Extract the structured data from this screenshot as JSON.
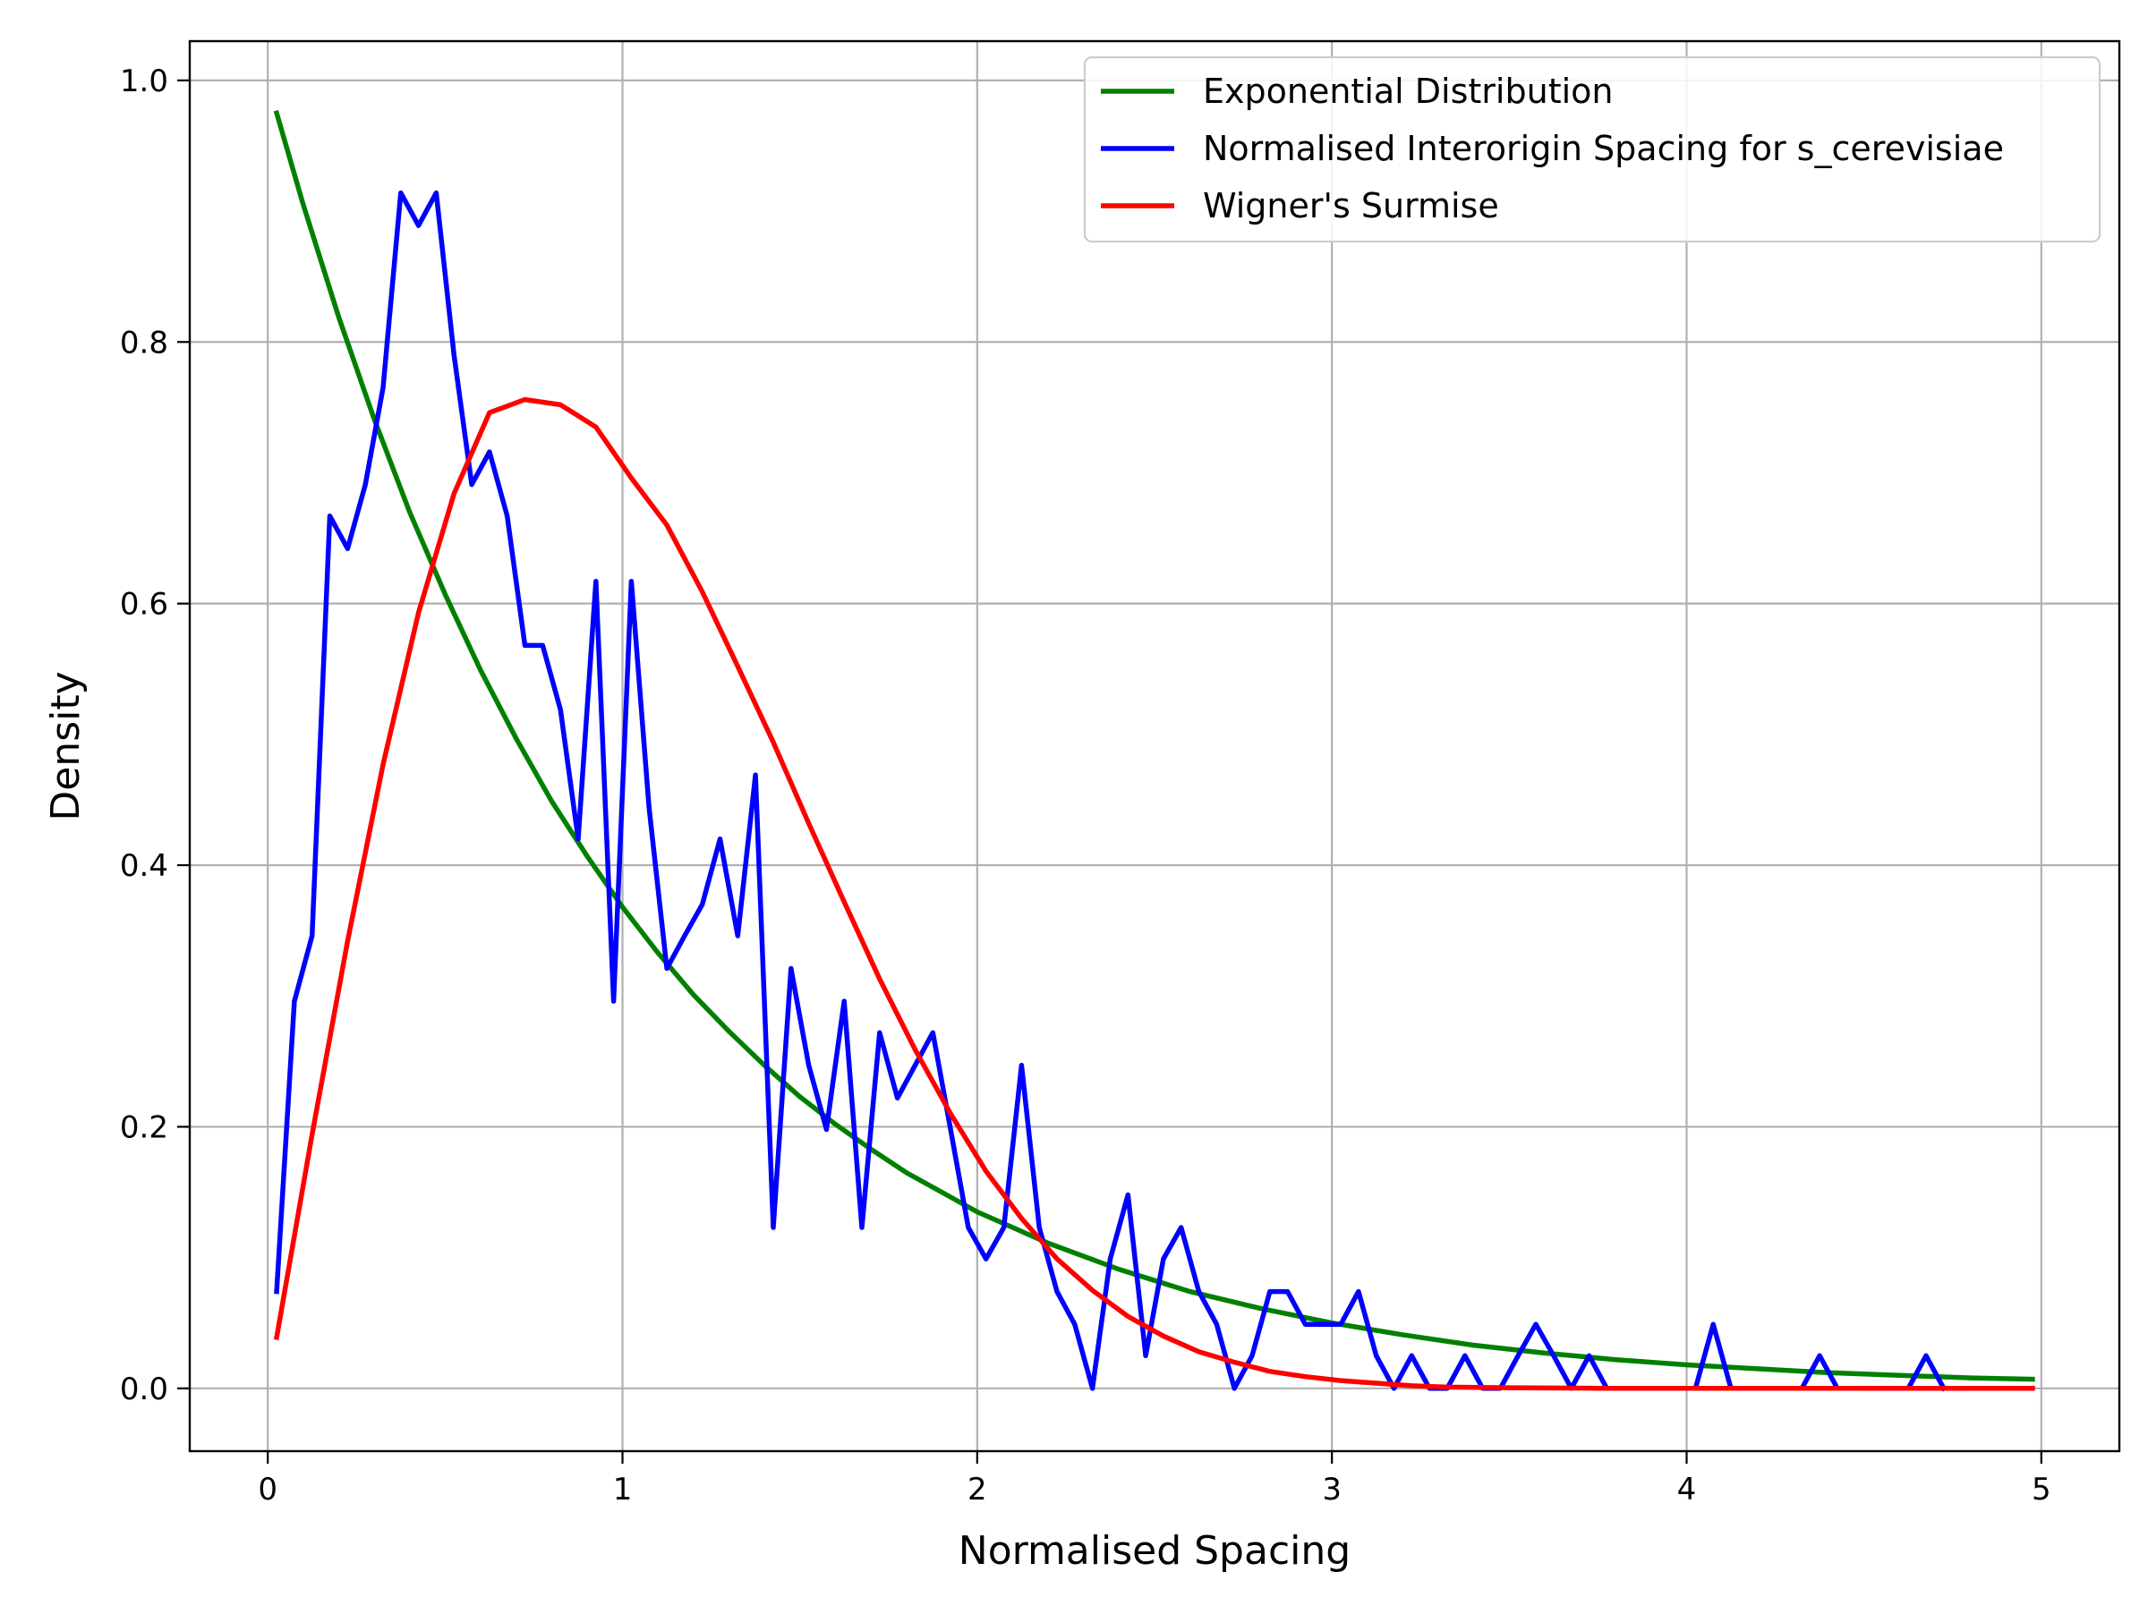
{
  "chart_data": {
    "type": "line",
    "title": "",
    "xlabel": "Normalised Spacing",
    "ylabel": "Density",
    "xlim": [
      -0.22,
      5.22
    ],
    "ylim": [
      -0.048,
      1.03
    ],
    "xticks": [
      0,
      1,
      2,
      3,
      4,
      5
    ],
    "xtick_labels": [
      "0",
      "1",
      "2",
      "3",
      "4",
      "5"
    ],
    "yticks": [
      0.0,
      0.2,
      0.4,
      0.6,
      0.8,
      1.0
    ],
    "ytick_labels": [
      "0.0",
      "0.2",
      "0.4",
      "0.6",
      "0.8",
      "1.0"
    ],
    "grid": true,
    "legend_position": "top-right",
    "series": [
      {
        "name": "Exponential Distribution",
        "color": "#008000",
        "x": [
          0.025,
          0.1,
          0.2,
          0.3,
          0.4,
          0.5,
          0.6,
          0.7,
          0.8,
          0.9,
          1.0,
          1.1,
          1.2,
          1.3,
          1.4,
          1.5,
          1.6,
          1.7,
          1.8,
          1.9,
          2.0,
          2.2,
          2.4,
          2.6,
          2.8,
          3.0,
          3.2,
          3.4,
          3.6,
          3.8,
          4.0,
          4.2,
          4.4,
          4.6,
          4.8,
          4.975
        ],
        "y": [
          0.975,
          0.905,
          0.819,
          0.741,
          0.67,
          0.607,
          0.549,
          0.497,
          0.449,
          0.407,
          0.368,
          0.333,
          0.301,
          0.273,
          0.247,
          0.223,
          0.202,
          0.183,
          0.165,
          0.15,
          0.135,
          0.111,
          0.091,
          0.074,
          0.061,
          0.05,
          0.041,
          0.033,
          0.027,
          0.022,
          0.018,
          0.015,
          0.012,
          0.01,
          0.008,
          0.007
        ]
      },
      {
        "name": "Normalised Interorigin Spacing for s_cerevisiae",
        "color": "#0000ff",
        "x": [
          0.025,
          0.075,
          0.125,
          0.175,
          0.225,
          0.275,
          0.325,
          0.375,
          0.425,
          0.475,
          0.525,
          0.575,
          0.625,
          0.675,
          0.725,
          0.775,
          0.825,
          0.875,
          0.925,
          0.975,
          1.025,
          1.075,
          1.125,
          1.175,
          1.225,
          1.275,
          1.325,
          1.375,
          1.425,
          1.475,
          1.525,
          1.575,
          1.625,
          1.675,
          1.725,
          1.775,
          1.825,
          1.875,
          1.925,
          1.975,
          2.025,
          2.075,
          2.125,
          2.175,
          2.225,
          2.275,
          2.325,
          2.375,
          2.425,
          2.475,
          2.525,
          2.575,
          2.625,
          2.675,
          2.725,
          2.775,
          2.825,
          2.875,
          2.925,
          2.975,
          3.025,
          3.075,
          3.125,
          3.175,
          3.225,
          3.275,
          3.325,
          3.375,
          3.425,
          3.475,
          3.525,
          3.575,
          3.625,
          3.675,
          3.725,
          3.775,
          3.825,
          3.875,
          3.925,
          3.975,
          4.025,
          4.075,
          4.125,
          4.175,
          4.225,
          4.275,
          4.325,
          4.375,
          4.425,
          4.475,
          4.525,
          4.575,
          4.625,
          4.675,
          4.725
        ],
        "y": [
          0.074,
          0.296,
          0.346,
          0.667,
          0.642,
          0.691,
          0.765,
          0.914,
          0.889,
          0.914,
          0.79,
          0.691,
          0.716,
          0.667,
          0.568,
          0.568,
          0.519,
          0.42,
          0.617,
          0.296,
          0.617,
          0.444,
          0.321,
          0.346,
          0.37,
          0.42,
          0.346,
          0.469,
          0.123,
          0.321,
          0.247,
          0.198,
          0.296,
          0.123,
          0.272,
          0.222,
          0.247,
          0.272,
          0.198,
          0.123,
          0.099,
          0.123,
          0.247,
          0.123,
          0.074,
          0.049,
          0.0,
          0.099,
          0.148,
          0.025,
          0.099,
          0.123,
          0.074,
          0.049,
          0.0,
          0.025,
          0.074,
          0.074,
          0.049,
          0.049,
          0.049,
          0.074,
          0.025,
          0.0,
          0.025,
          0.0,
          0.0,
          0.025,
          0.0,
          0.0,
          0.025,
          0.049,
          0.025,
          0.0,
          0.025,
          0.0,
          0.0,
          0.0,
          0.0,
          0.0,
          0.0,
          0.049,
          0.0,
          0.0,
          0.0,
          0.0,
          0.0,
          0.025,
          0.0,
          0.0,
          0.0,
          0.0,
          0.0,
          0.025,
          0.0
        ]
      },
      {
        "name": "Wigner's Surmise",
        "color": "#ff0000",
        "x": [
          0.025,
          0.125,
          0.225,
          0.325,
          0.425,
          0.525,
          0.625,
          0.675,
          0.725,
          0.825,
          0.925,
          1.025,
          1.125,
          1.225,
          1.325,
          1.425,
          1.525,
          1.625,
          1.725,
          1.825,
          1.925,
          2.025,
          2.125,
          2.225,
          2.325,
          2.425,
          2.525,
          2.625,
          2.725,
          2.825,
          2.925,
          3.025,
          3.125,
          3.225,
          3.325,
          3.5,
          3.75,
          4.0,
          4.25,
          4.5,
          4.75,
          4.975
        ],
        "y": [
          0.039,
          0.194,
          0.342,
          0.477,
          0.593,
          0.684,
          0.746,
          0.751,
          0.756,
          0.752,
          0.735,
          0.696,
          0.66,
          0.609,
          0.552,
          0.494,
          0.432,
          0.372,
          0.313,
          0.259,
          0.21,
          0.166,
          0.13,
          0.099,
          0.075,
          0.055,
          0.04,
          0.028,
          0.02,
          0.013,
          0.009,
          0.006,
          0.004,
          0.002,
          0.001,
          0.0005,
          0.0001,
          0.0,
          0.0,
          0.0,
          0.0,
          0.0
        ]
      }
    ]
  }
}
